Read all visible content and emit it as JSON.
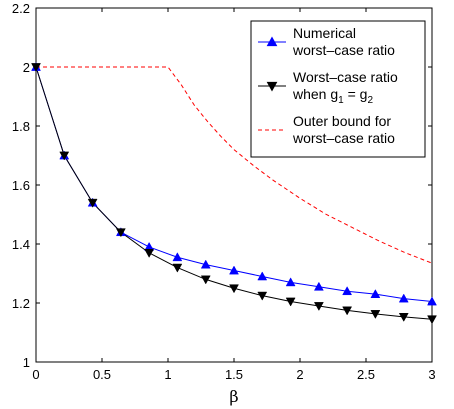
{
  "chart_data": {
    "type": "line",
    "xlabel": "β",
    "ylabel": "",
    "title": "",
    "xlim": [
      0,
      3
    ],
    "ylim": [
      1,
      2.2
    ],
    "xticks": [
      "0",
      "0.5",
      "1",
      "1.5",
      "2",
      "2.5",
      "3"
    ],
    "yticks": [
      "1",
      "1.2",
      "1.4",
      "1.6",
      "1.8",
      "2",
      "2.2"
    ],
    "grid": false,
    "legend_position": "top-right",
    "series": [
      {
        "name": "Numerical worst-case ratio",
        "legend_lines": [
          "Numerical",
          "worst–case ratio"
        ],
        "color": "#0000ff",
        "marker": "triangle-up",
        "line_style": "solid",
        "x": [
          0,
          0.214,
          0.429,
          0.643,
          0.857,
          1.071,
          1.286,
          1.5,
          1.714,
          1.929,
          2.143,
          2.357,
          2.571,
          2.786,
          3.0
        ],
        "y": [
          2.0,
          1.7,
          1.54,
          1.44,
          1.39,
          1.355,
          1.33,
          1.31,
          1.29,
          1.27,
          1.255,
          1.24,
          1.23,
          1.215,
          1.205
        ]
      },
      {
        "name": "Worst-case ratio when g1 = g2",
        "legend_lines": [
          "Worst–case ratio",
          "when g",
          "1",
          " = g",
          "2"
        ],
        "color": "#000000",
        "marker": "triangle-down",
        "line_style": "solid",
        "x": [
          0,
          0.214,
          0.429,
          0.643,
          0.857,
          1.071,
          1.286,
          1.5,
          1.714,
          1.929,
          2.143,
          2.357,
          2.571,
          2.786,
          3.0
        ],
        "y": [
          2.0,
          1.7,
          1.54,
          1.44,
          1.37,
          1.32,
          1.28,
          1.25,
          1.225,
          1.205,
          1.19,
          1.175,
          1.163,
          1.153,
          1.145
        ]
      },
      {
        "name": "Outer bound for worst-case ratio",
        "legend_lines": [
          "Outer bound for",
          "worst–case ratio"
        ],
        "color": "#ff0000",
        "marker": "none",
        "line_style": "dashed",
        "x": [
          0,
          0.25,
          0.5,
          0.75,
          1.0,
          1.1,
          1.2,
          1.3,
          1.4,
          1.5,
          1.65,
          1.8,
          2.0,
          2.2,
          2.4,
          2.6,
          2.8,
          3.0
        ],
        "y": [
          2.0,
          2.0,
          2.0,
          2.0,
          2.0,
          1.94,
          1.87,
          1.815,
          1.765,
          1.72,
          1.665,
          1.615,
          1.555,
          1.5,
          1.455,
          1.41,
          1.37,
          1.335
        ]
      }
    ]
  }
}
